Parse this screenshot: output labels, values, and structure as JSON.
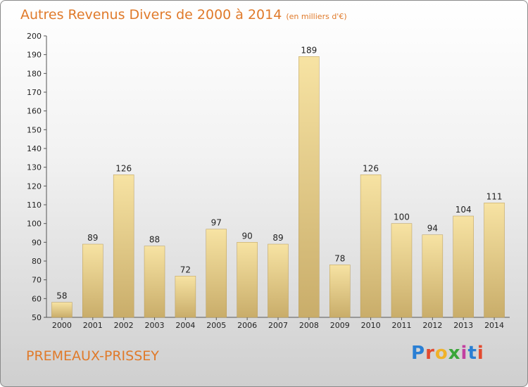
{
  "title": "Autres Revenus Divers de 2000 à 2014",
  "subtitle": "(en milliers d'€)",
  "city": "PREMEAUX-PRISSEY",
  "brand": {
    "text": "Proxiti",
    "colors": [
      "#2a7fd4",
      "#e34a2f",
      "#f0b22a",
      "#3aa63a",
      "#c23fa0",
      "#2a7fd4",
      "#e34a2f"
    ]
  },
  "colors": {
    "bar_top": "#f7e3a3",
    "bar_bottom": "#c9ad6a",
    "accent": "#e07a2a",
    "axis": "#555555"
  },
  "chart_data": {
    "type": "bar",
    "categories": [
      "2000",
      "2001",
      "2002",
      "2003",
      "2004",
      "2005",
      "2006",
      "2007",
      "2008",
      "2009",
      "2010",
      "2011",
      "2012",
      "2013",
      "2014"
    ],
    "values": [
      58,
      89,
      126,
      88,
      72,
      97,
      90,
      89,
      189,
      78,
      126,
      100,
      94,
      104,
      111
    ],
    "title": "Autres Revenus Divers de 2000 à 2014",
    "subtitle": "(en milliers d'€)",
    "xlabel": "",
    "ylabel": "",
    "ylim": [
      50,
      200
    ],
    "yticks": [
      50,
      60,
      70,
      80,
      90,
      100,
      110,
      120,
      130,
      140,
      150,
      160,
      170,
      180,
      190,
      200
    ],
    "grid": false,
    "legend": "none"
  }
}
